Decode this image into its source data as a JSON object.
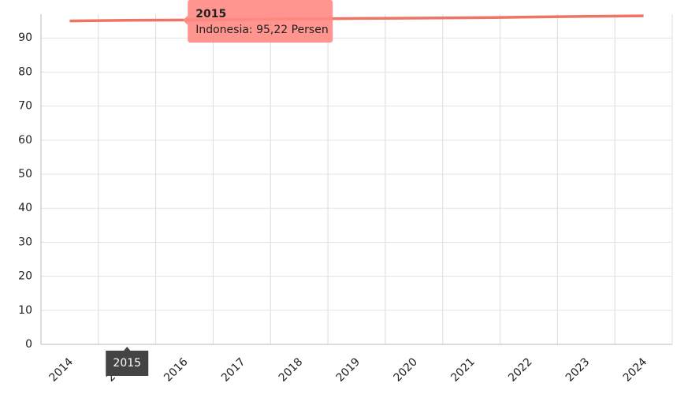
{
  "chart_data": {
    "type": "line",
    "categories": [
      "2014",
      "2015",
      "2016",
      "2017",
      "2018",
      "2019",
      "2020",
      "2021",
      "2022",
      "2023",
      "2024"
    ],
    "series": [
      {
        "name": "Indonesia",
        "color": "#f07466",
        "values": [
          95.0,
          95.22,
          95.3,
          95.45,
          95.6,
          95.75,
          95.85,
          95.95,
          96.15,
          96.35,
          96.5
        ]
      }
    ],
    "ylim": [
      0,
      97
    ],
    "yticks": [
      0,
      10,
      20,
      30,
      40,
      50,
      60,
      70,
      80,
      90
    ],
    "grid": true,
    "tooltip": {
      "category": 1,
      "text": "Indonesia: 95,22 Persen"
    }
  }
}
